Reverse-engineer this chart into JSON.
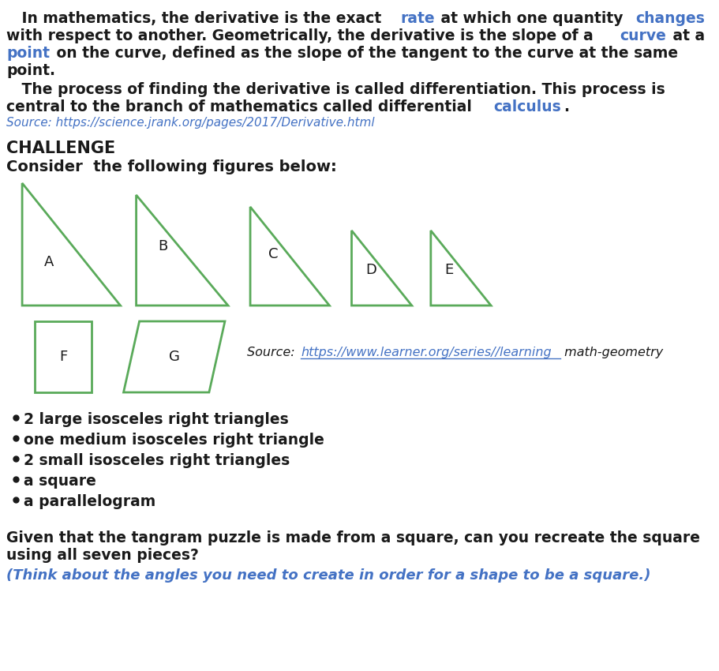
{
  "bg_color": "#ffffff",
  "text_color": "#1a1a1a",
  "blue_color": "#4472c4",
  "source_color": "#4472c4",
  "italic_blue_color": "#4472c4",
  "source1": "Source: https://science.jrank.org/pages/2017/Derivative.html",
  "challenge_title": "CHALLENGE",
  "challenge_line": "Consider  the following figures below:",
  "source2_prefix": "Source: ",
  "source2_link": "https://www.learner.org/series//learning",
  "source2_suffix": " math-geometry",
  "bullet_items": [
    "2 large isosceles right triangles",
    "one medium isosceles right triangle",
    "2 small isosceles right triangles",
    "a square",
    "a parallelogram"
  ],
  "final_para_line1": "Given that the tangram puzzle is made from a square, can you recreate the square",
  "final_para_line2": "using all seven pieces?",
  "italic_line": "(Think about the angles you need to create in order for a shape to be a square.)",
  "shape_green": "#5aaa5a",
  "label_A": "A",
  "label_B": "B",
  "label_C": "C",
  "label_D": "D",
  "label_E": "E",
  "label_F": "F",
  "label_G": "G",
  "fs_main": 13.5,
  "fs_source": 11,
  "fs_challenge": 14,
  "fs_bullet": 13.5,
  "fs_italic": 13,
  "ls": 22,
  "lm": 10
}
